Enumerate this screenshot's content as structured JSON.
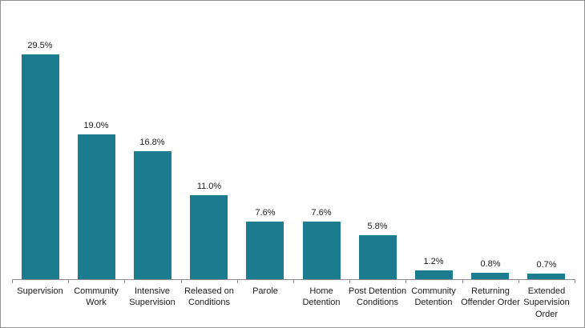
{
  "chart_data": {
    "type": "bar",
    "title": "",
    "xlabel": "",
    "ylabel": "",
    "categories": [
      "Supervision",
      "Community Work",
      "Intensive Supervision",
      "Released on Conditions",
      "Parole",
      "Home Detention",
      "Post Detention Conditions",
      "Community Detention",
      "Returning Offender Order",
      "Extended Supervision Order"
    ],
    "values": [
      29.5,
      19.0,
      16.8,
      11.0,
      7.6,
      7.6,
      5.8,
      1.2,
      0.8,
      0.7
    ],
    "data_labels": [
      "29.5%",
      "19.0%",
      "16.8%",
      "11.0%",
      "7.6%",
      "7.6%",
      "5.8%",
      "1.2%",
      "0.8%",
      "0.7%"
    ],
    "ylim": [
      0,
      29.5
    ],
    "grid": false,
    "legend": "none",
    "bar_color": "#1b7b8f",
    "axis_color": "#8c8c8c",
    "label_color": "#1a1a1a"
  }
}
